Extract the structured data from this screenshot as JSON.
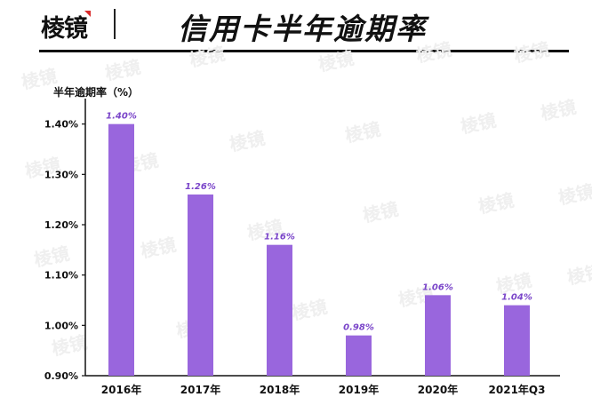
{
  "header": {
    "logo_text": "棱镜",
    "title": "信用卡半年逾期率"
  },
  "colors": {
    "bar": "#9966dd",
    "label": "#7a45c9",
    "axis": "#111111"
  },
  "chart_data": {
    "type": "bar",
    "categories": [
      "2016年",
      "2017年",
      "2018年",
      "2019年",
      "2020年",
      "2021年Q3"
    ],
    "values": [
      1.4,
      1.26,
      1.16,
      0.98,
      1.06,
      1.04
    ],
    "data_labels": [
      "1.40%",
      "1.26%",
      "1.16%",
      "0.98%",
      "1.06%",
      "1.04%"
    ],
    "ylabel": "半年逾期率（%）",
    "yticks": [
      0.9,
      1.0,
      1.1,
      1.2,
      1.3,
      1.4
    ],
    "ytick_labels": [
      "0.90%",
      "1.00%",
      "1.10%",
      "1.20%",
      "1.30%",
      "1.40%"
    ],
    "ylim": [
      0.9,
      1.44
    ],
    "grid": false
  }
}
